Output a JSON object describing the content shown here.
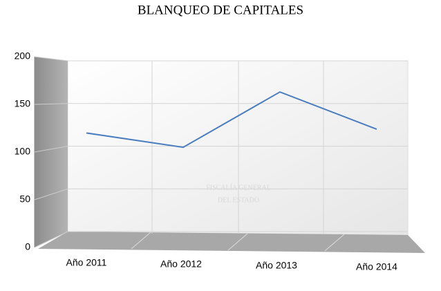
{
  "chart_data": {
    "type": "line",
    "title": "BLANQUEO DE CAPITALES",
    "categories": [
      "Año 2011",
      "Año 2012",
      "Año 2013",
      "Año 2014"
    ],
    "values": [
      120,
      105,
      163,
      124
    ],
    "color": "#4a7cc0",
    "ylim": [
      0,
      200
    ],
    "yticks": [
      0,
      50,
      100,
      150,
      200
    ],
    "grid": true,
    "watermark": [
      "FISCALÍA GENERAL",
      "DEL ESTADO"
    ]
  }
}
